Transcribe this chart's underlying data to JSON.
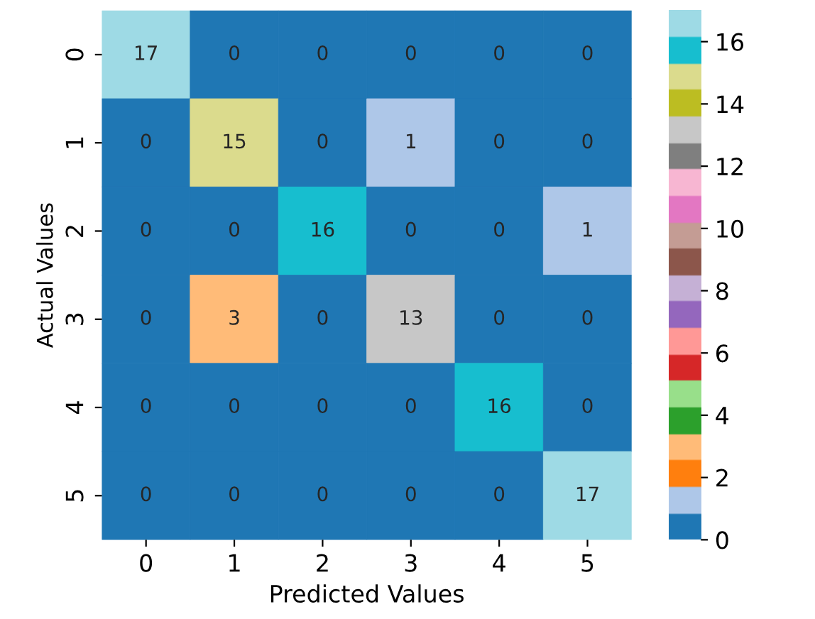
{
  "chart_data": {
    "type": "heatmap",
    "xlabel": "Predicted Values",
    "ylabel": "Actual Values",
    "categories": [
      "0",
      "1",
      "2",
      "3",
      "4",
      "5"
    ],
    "y_categories": [
      "0",
      "1",
      "2",
      "3",
      "4",
      "5"
    ],
    "cells": [
      [
        17,
        0,
        0,
        0,
        0,
        0
      ],
      [
        0,
        15,
        0,
        1,
        0,
        0
      ],
      [
        0,
        0,
        16,
        0,
        0,
        1
      ],
      [
        0,
        3,
        0,
        13,
        0,
        0
      ],
      [
        0,
        0,
        0,
        0,
        16,
        0
      ],
      [
        0,
        0,
        0,
        0,
        0,
        17
      ]
    ],
    "clim": [
      0,
      17
    ],
    "cticks": [
      0,
      2,
      4,
      6,
      8,
      10,
      12,
      14,
      16
    ],
    "colors": [
      "#1f77b4",
      "#aec7e8",
      "#ff7f0e",
      "#ffbb78",
      "#2ca02c",
      "#98df8a",
      "#d62728",
      "#ff9896",
      "#9467bd",
      "#c5b0d5",
      "#8c564b",
      "#c49c94",
      "#e377c2",
      "#f7b6d2",
      "#7f7f7f",
      "#c7c7c7",
      "#bcbd22",
      "#dbdb8d",
      "#17becf",
      "#9edae5"
    ],
    "data_labels": true
  }
}
